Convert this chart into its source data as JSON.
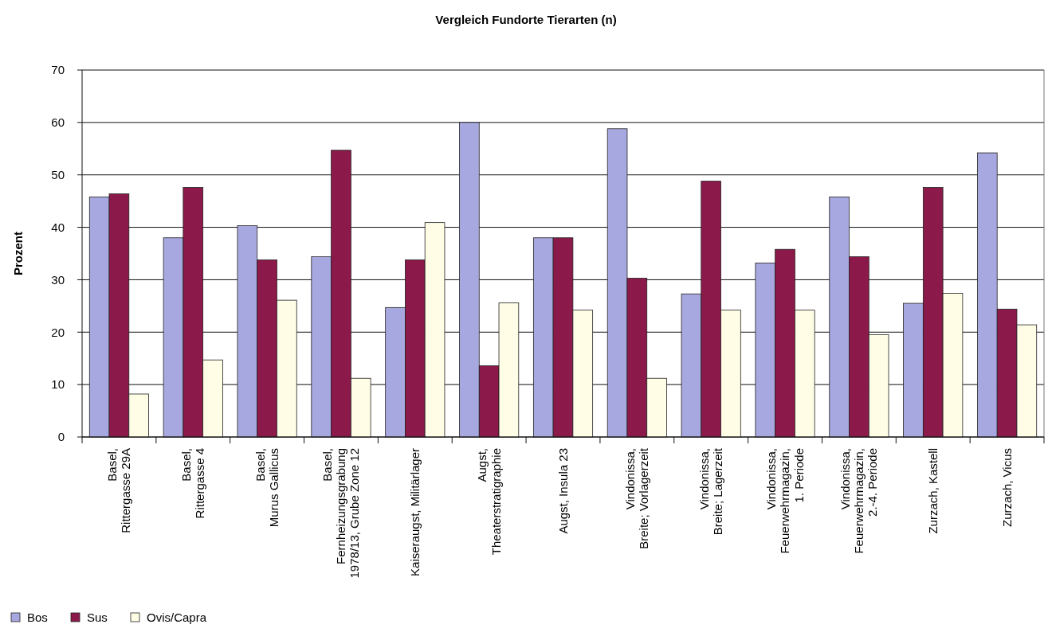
{
  "chart_data": {
    "type": "bar",
    "title": "Vergleich Fundorte Tierarten (n)",
    "ylabel": "Prozent",
    "categories": [
      "Basel,\nRittergasse 29A",
      "Basel,\nRittergasse 4",
      "Basel,\nMurus Gallicus",
      "Basel,\nFernheizungsgrabung\n1978/13, Grube Zone 12",
      "Kaiseraugst, Militärlager",
      "Augst,\nTheaterstratigraphie",
      "Augst, Insula 23",
      "Vindonissa,\nBreite; Vorlagerzeit",
      "Vindonissa,\nBreite; Lagerzeit",
      "Vindonissa,\nFeuerwehrmagazin,\n1. Periode",
      "Vindonissa,\nFeuerwehrmagazin,\n2.-4. Periode",
      "Zurzach, Kastell",
      "Zurzach, Vicus"
    ],
    "series": [
      {
        "name": "Bos",
        "color": "#a8a8e0",
        "values": [
          45.8,
          38.0,
          40.3,
          34.4,
          24.7,
          60.0,
          38.0,
          58.8,
          27.3,
          33.2,
          45.8,
          25.5,
          54.2
        ]
      },
      {
        "name": "Sus",
        "color": "#8b1a4a",
        "values": [
          46.4,
          47.6,
          33.8,
          54.7,
          33.8,
          13.6,
          38.0,
          30.3,
          48.8,
          35.8,
          34.4,
          47.6,
          24.4
        ]
      },
      {
        "name": "Ovis/Capra",
        "color": "#fffde6",
        "values": [
          8.2,
          14.7,
          26.1,
          11.2,
          40.9,
          25.6,
          24.2,
          11.2,
          24.2,
          24.2,
          19.5,
          27.4,
          21.4
        ]
      }
    ],
    "ylim": [
      0,
      70
    ],
    "yticks": [
      0,
      10,
      20,
      30,
      40,
      50,
      60,
      70
    ],
    "grid": "y",
    "legend": "bottom left"
  }
}
